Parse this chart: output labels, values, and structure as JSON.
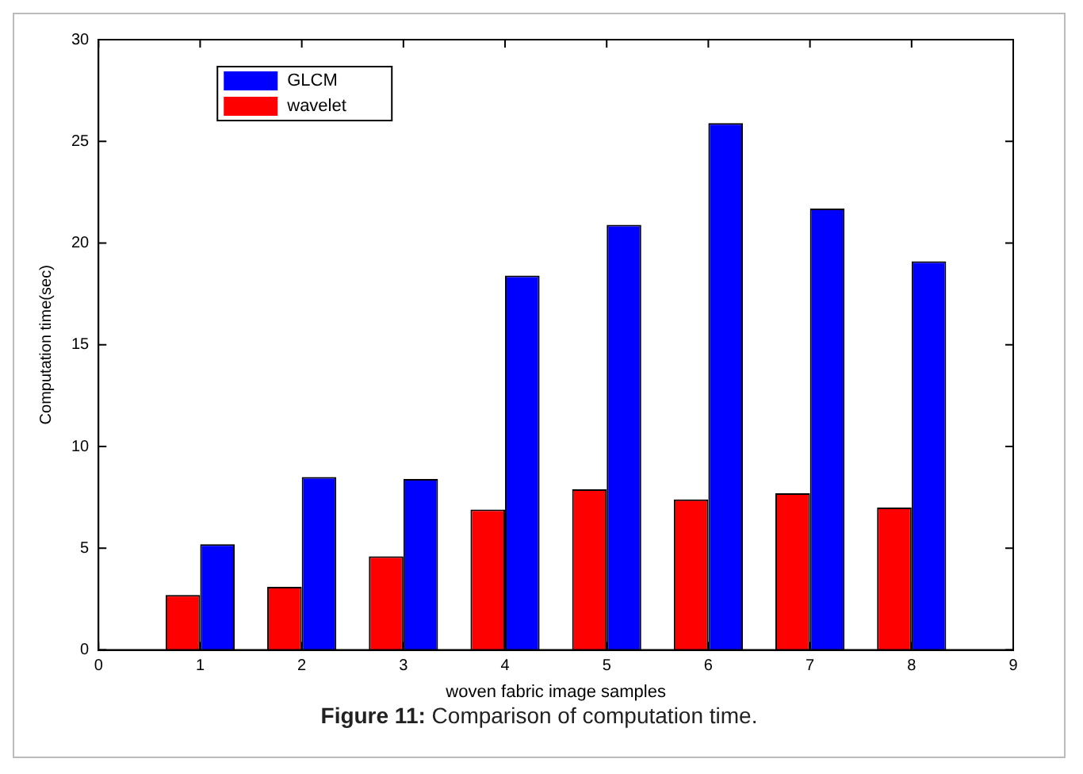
{
  "chart_data": {
    "type": "bar",
    "xlabel": "woven fabric image samples",
    "ylabel": "Computation time(sec)",
    "x": [
      1,
      2,
      3,
      4,
      5,
      6,
      7,
      8
    ],
    "series": [
      {
        "name": "wavelet",
        "color": "#ff0000",
        "values": [
          2.7,
          3.1,
          4.6,
          6.9,
          7.9,
          7.4,
          7.7,
          7.0
        ]
      },
      {
        "name": "GLCM",
        "color": "#0000ff",
        "values": [
          5.2,
          8.5,
          8.4,
          18.4,
          20.9,
          25.9,
          21.7,
          19.1
        ]
      }
    ],
    "xlim": [
      0,
      9
    ],
    "xticks": [
      0,
      1,
      2,
      3,
      4,
      5,
      6,
      7,
      8,
      9
    ],
    "ylim": [
      0,
      30
    ],
    "yticks": [
      0,
      5,
      10,
      15,
      20,
      25,
      30
    ],
    "grid": false,
    "legend": "top left",
    "annotations": [
      "Figure 11: Comparison of computation time."
    ]
  }
}
